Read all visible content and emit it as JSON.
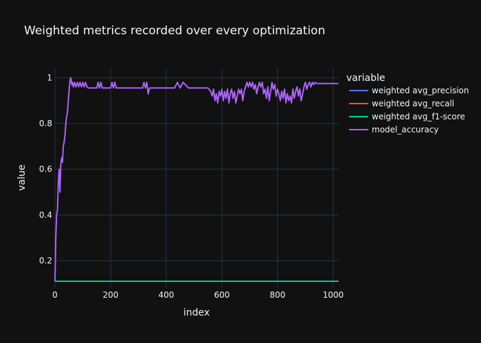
{
  "chart_data": {
    "type": "line",
    "title": "Weighted metrics recorded over every optimization",
    "xlabel": "index",
    "ylabel": "value",
    "xlim": [
      0,
      1020
    ],
    "ylim": [
      0.08,
      1.04
    ],
    "xticks": [
      0,
      200,
      400,
      600,
      800,
      1000
    ],
    "yticks": [
      0.2,
      0.4,
      0.6,
      0.8,
      1
    ],
    "grid": true,
    "legend": {
      "title": "variable",
      "placement": "right"
    },
    "series": [
      {
        "name": "weighted avg_precision",
        "color": "#636efa",
        "x": [
          0,
          1019
        ],
        "y": [
          0.11,
          0.11
        ]
      },
      {
        "name": "weighted avg_recall",
        "color": "#ef553b",
        "x": [
          0,
          1019
        ],
        "y": [
          0.11,
          0.11
        ]
      },
      {
        "name": "weighted avg_f1-score",
        "color": "#00cc96",
        "x": [
          0,
          1019
        ],
        "y": [
          0.11,
          0.11
        ]
      },
      {
        "name": "model_accuracy",
        "color": "#ab63fa",
        "x": [
          0,
          3,
          6,
          9,
          12,
          15,
          18,
          21,
          24,
          27,
          30,
          33,
          36,
          39,
          42,
          45,
          48,
          51,
          54,
          57,
          60,
          63,
          66,
          70,
          75,
          80,
          85,
          90,
          95,
          100,
          105,
          110,
          115,
          120,
          130,
          140,
          150,
          155,
          160,
          165,
          170,
          180,
          190,
          200,
          205,
          210,
          215,
          220,
          230,
          260,
          300,
          315,
          320,
          325,
          330,
          335,
          340,
          350,
          400,
          430,
          440,
          450,
          460,
          480,
          500,
          550,
          560,
          565,
          570,
          575,
          580,
          585,
          590,
          595,
          600,
          605,
          610,
          615,
          620,
          625,
          630,
          635,
          640,
          645,
          650,
          655,
          660,
          665,
          670,
          675,
          680,
          685,
          690,
          695,
          700,
          705,
          710,
          715,
          720,
          725,
          730,
          735,
          740,
          745,
          750,
          755,
          760,
          765,
          770,
          775,
          780,
          785,
          790,
          795,
          800,
          805,
          810,
          815,
          820,
          825,
          830,
          835,
          840,
          845,
          850,
          855,
          860,
          865,
          870,
          875,
          880,
          885,
          890,
          895,
          900,
          905,
          910,
          915,
          920,
          925,
          930,
          935,
          940,
          960,
          1000,
          1019
        ],
        "y": [
          0.11,
          0.3,
          0.4,
          0.42,
          0.55,
          0.6,
          0.5,
          0.62,
          0.65,
          0.63,
          0.7,
          0.72,
          0.75,
          0.8,
          0.83,
          0.85,
          0.9,
          0.95,
          0.99,
          1.0,
          0.97,
          0.98,
          0.96,
          0.98,
          0.96,
          0.98,
          0.96,
          0.98,
          0.96,
          0.98,
          0.96,
          0.98,
          0.96,
          0.955,
          0.955,
          0.955,
          0.955,
          0.98,
          0.955,
          0.98,
          0.955,
          0.955,
          0.955,
          0.955,
          0.98,
          0.955,
          0.98,
          0.955,
          0.955,
          0.955,
          0.955,
          0.955,
          0.98,
          0.955,
          0.98,
          0.93,
          0.955,
          0.955,
          0.955,
          0.955,
          0.98,
          0.955,
          0.98,
          0.955,
          0.955,
          0.955,
          0.94,
          0.92,
          0.95,
          0.9,
          0.93,
          0.89,
          0.94,
          0.92,
          0.95,
          0.9,
          0.94,
          0.91,
          0.95,
          0.89,
          0.93,
          0.95,
          0.91,
          0.94,
          0.89,
          0.92,
          0.95,
          0.93,
          0.95,
          0.9,
          0.94,
          0.96,
          0.98,
          0.96,
          0.98,
          0.96,
          0.98,
          0.95,
          0.97,
          0.93,
          0.96,
          0.98,
          0.96,
          0.98,
          0.93,
          0.95,
          0.91,
          0.96,
          0.9,
          0.94,
          0.98,
          0.95,
          0.97,
          0.92,
          0.95,
          0.93,
          0.9,
          0.94,
          0.91,
          0.95,
          0.89,
          0.93,
          0.9,
          0.92,
          0.89,
          0.95,
          0.91,
          0.94,
          0.96,
          0.92,
          0.95,
          0.9,
          0.93,
          0.96,
          0.98,
          0.95,
          0.97,
          0.98,
          0.96,
          0.98,
          0.97,
          0.98,
          0.975,
          0.975,
          0.975,
          0.975
        ]
      }
    ]
  }
}
